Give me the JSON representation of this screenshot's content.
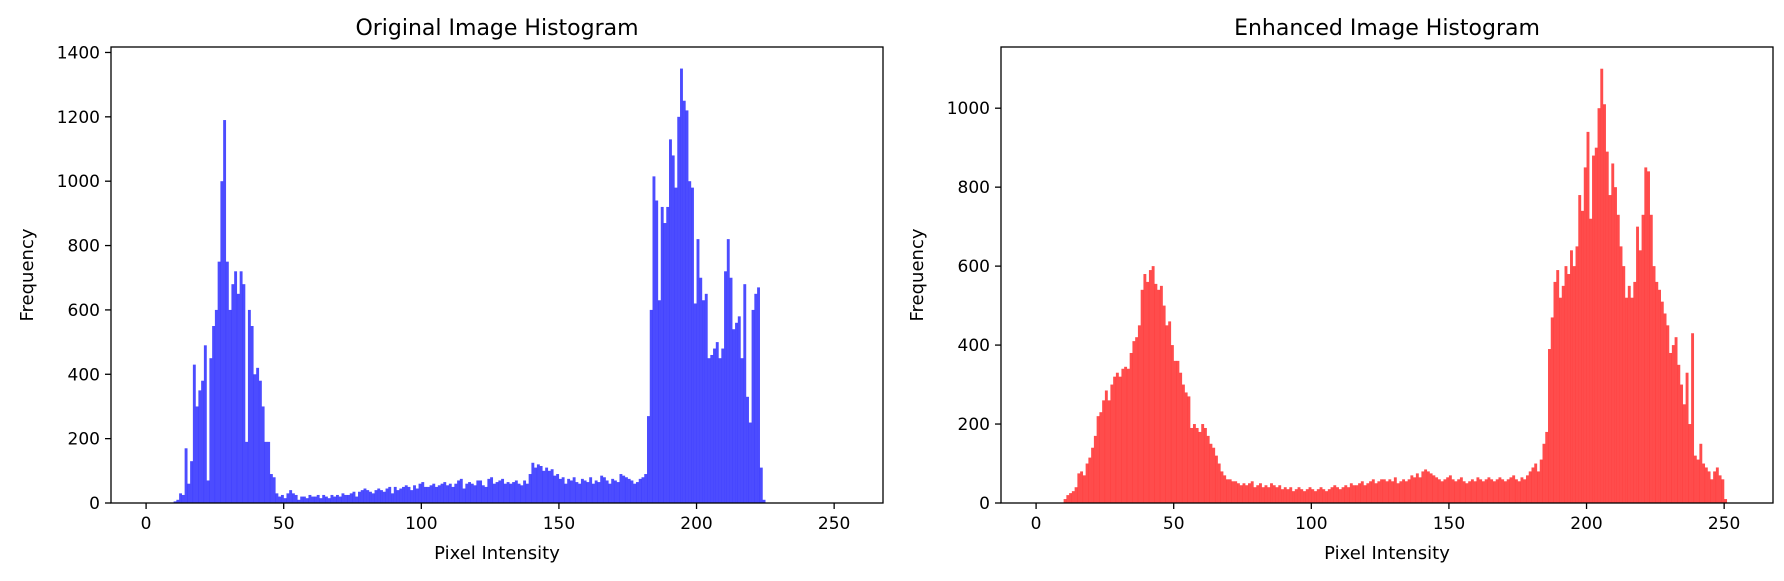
{
  "chart_data": [
    {
      "type": "bar",
      "title": "Original Image Histogram",
      "xlabel": "Pixel Intensity",
      "ylabel": "Frequency",
      "color": "#0000ff",
      "opacity": 0.7,
      "xlim": [
        -12.75,
        267.75
      ],
      "ylim": [
        0,
        1417
      ],
      "xticks": [
        0,
        50,
        100,
        150,
        200,
        250
      ],
      "yticks": [
        0,
        200,
        400,
        600,
        800,
        1000,
        1200,
        1400
      ],
      "bin_width": 1,
      "x_start": 10,
      "values": [
        5,
        10,
        30,
        25,
        170,
        60,
        130,
        430,
        300,
        350,
        380,
        490,
        70,
        450,
        550,
        600,
        750,
        1000,
        1190,
        750,
        600,
        680,
        720,
        650,
        720,
        680,
        190,
        600,
        550,
        400,
        420,
        380,
        300,
        190,
        190,
        90,
        80,
        30,
        20,
        25,
        15,
        30,
        40,
        30,
        25,
        10,
        20,
        20,
        15,
        25,
        20,
        20,
        25,
        15,
        25,
        20,
        15,
        25,
        20,
        25,
        20,
        30,
        25,
        25,
        30,
        35,
        20,
        35,
        40,
        45,
        40,
        35,
        30,
        40,
        45,
        40,
        35,
        45,
        50,
        30,
        50,
        40,
        45,
        50,
        55,
        50,
        40,
        55,
        45,
        60,
        65,
        50,
        50,
        55,
        60,
        50,
        55,
        60,
        65,
        55,
        60,
        50,
        60,
        70,
        75,
        45,
        60,
        65,
        60,
        55,
        70,
        70,
        55,
        50,
        75,
        80,
        60,
        65,
        70,
        75,
        60,
        65,
        60,
        65,
        70,
        60,
        55,
        70,
        60,
        90,
        125,
        110,
        120,
        115,
        100,
        110,
        100,
        105,
        85,
        90,
        75,
        80,
        60,
        75,
        70,
        80,
        65,
        60,
        75,
        70,
        65,
        80,
        60,
        70,
        65,
        85,
        80,
        70,
        60,
        75,
        70,
        65,
        90,
        85,
        80,
        75,
        70,
        60,
        65,
        75,
        80,
        90,
        270,
        600,
        1015,
        940,
        630,
        920,
        870,
        920,
        1130,
        1080,
        980,
        1200,
        1350,
        1250,
        1220,
        1000,
        980,
        620,
        820,
        700,
        630,
        650,
        450,
        460,
        480,
        500,
        450,
        480,
        720,
        820,
        700,
        540,
        560,
        580,
        450,
        680,
        330,
        250,
        600,
        650,
        670,
        110,
        10
      ],
      "legend": "none"
    },
    {
      "type": "bar",
      "title": "Enhanced Image Histogram",
      "xlabel": "Pixel Intensity",
      "ylabel": "Frequency",
      "color": "#ff0000",
      "opacity": 0.7,
      "xlim": [
        -12.75,
        267.75
      ],
      "ylim": [
        0,
        1155
      ],
      "xticks": [
        0,
        50,
        100,
        150,
        200,
        250
      ],
      "yticks": [
        0,
        200,
        400,
        600,
        800,
        1000
      ],
      "bin_width": 1,
      "x_start": 10,
      "values": [
        10,
        20,
        25,
        30,
        40,
        75,
        80,
        70,
        100,
        115,
        140,
        170,
        220,
        230,
        260,
        285,
        260,
        300,
        320,
        330,
        320,
        340,
        345,
        340,
        380,
        410,
        420,
        450,
        540,
        580,
        560,
        590,
        600,
        555,
        540,
        550,
        500,
        450,
        460,
        400,
        360,
        360,
        330,
        300,
        280,
        270,
        190,
        200,
        190,
        180,
        200,
        190,
        170,
        150,
        140,
        120,
        100,
        80,
        70,
        60,
        60,
        55,
        55,
        50,
        45,
        50,
        45,
        50,
        55,
        40,
        45,
        50,
        40,
        45,
        40,
        50,
        45,
        40,
        45,
        35,
        40,
        35,
        40,
        30,
        35,
        40,
        35,
        30,
        35,
        40,
        35,
        30,
        35,
        40,
        35,
        30,
        35,
        40,
        45,
        40,
        35,
        40,
        45,
        40,
        50,
        45,
        45,
        50,
        55,
        45,
        50,
        55,
        60,
        50,
        55,
        60,
        60,
        55,
        60,
        55,
        65,
        50,
        55,
        60,
        55,
        60,
        70,
        65,
        75,
        65,
        80,
        85,
        80,
        75,
        70,
        65,
        60,
        55,
        60,
        65,
        70,
        60,
        55,
        60,
        65,
        55,
        50,
        55,
        60,
        55,
        65,
        60,
        55,
        60,
        65,
        60,
        55,
        60,
        65,
        60,
        55,
        60,
        65,
        70,
        60,
        55,
        65,
        60,
        70,
        80,
        90,
        100,
        80,
        110,
        150,
        180,
        390,
        470,
        560,
        590,
        520,
        550,
        600,
        580,
        640,
        600,
        650,
        780,
        740,
        850,
        940,
        720,
        880,
        900,
        1000,
        1100,
        1010,
        890,
        780,
        860,
        800,
        730,
        650,
        600,
        520,
        550,
        520,
        560,
        700,
        640,
        730,
        850,
        840,
        730,
        600,
        560,
        540,
        510,
        480,
        450,
        380,
        400,
        420,
        350,
        300,
        250,
        330,
        200,
        430,
        120,
        110,
        150,
        100,
        90,
        80,
        60,
        80,
        90,
        70,
        60,
        10
      ]
    }
  ]
}
